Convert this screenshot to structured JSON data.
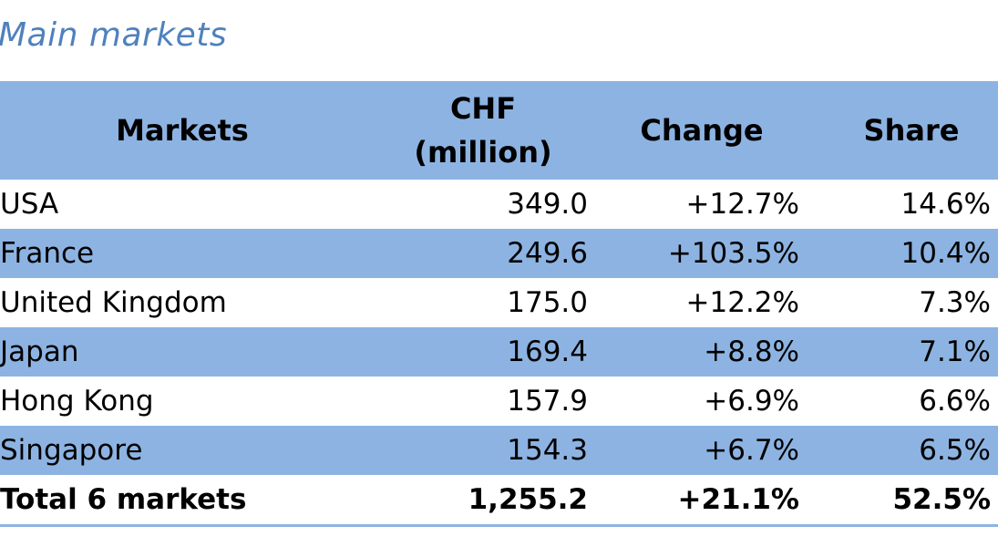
{
  "title": "Main markets",
  "table": {
    "headers": {
      "markets": "Markets",
      "chf_line1": "CHF",
      "chf_line2": "(million)",
      "change": "Change",
      "share": "Share"
    },
    "rows": [
      {
        "market": "USA",
        "chf": "349.0",
        "change": "+12.7%",
        "share": "14.6%"
      },
      {
        "market": "France",
        "chf": "249.6",
        "change": "+103.5%",
        "share": "10.4%"
      },
      {
        "market": "United Kingdom",
        "chf": "175.0",
        "change": "+12.2%",
        "share": "7.3%"
      },
      {
        "market": "Japan",
        "chf": "169.4",
        "change": "+8.8%",
        "share": "7.1%"
      },
      {
        "market": "Hong Kong",
        "chf": "157.9",
        "change": "+6.9%",
        "share": "6.6%"
      },
      {
        "market": "Singapore",
        "chf": "154.3",
        "change": "+6.7%",
        "share": "6.5%"
      }
    ],
    "total": {
      "market": "Total 6 markets",
      "chf": "1,255.2",
      "change": "+21.1%",
      "share": "52.5%"
    }
  },
  "colors": {
    "title": "#4f81bd",
    "band": "#8db3e2",
    "text": "#000000",
    "background": "#ffffff"
  }
}
